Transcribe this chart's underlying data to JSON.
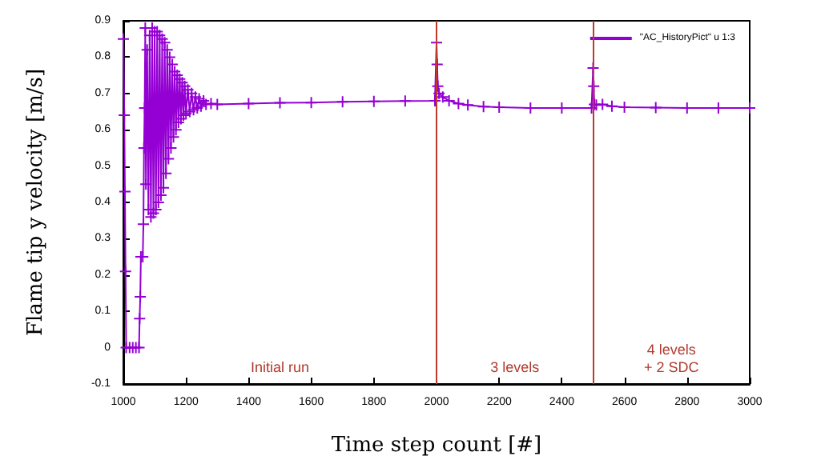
{
  "chart_data": {
    "type": "line",
    "xlabel": "Time step count [#]",
    "ylabel": "Flame tip y velocity [m/s]",
    "xlim": [
      1000,
      3000
    ],
    "xticks": [
      1000,
      1200,
      1400,
      1600,
      1800,
      2000,
      2200,
      2400,
      2600,
      2800,
      3000
    ],
    "ylim": [
      -0.1,
      0.9
    ],
    "yticks": [
      -0.1,
      0,
      0.1,
      0.2,
      0.3,
      0.4,
      0.5,
      0.6,
      0.7,
      0.8,
      0.9
    ],
    "grid": false,
    "legend": "top right",
    "marker": "cross",
    "line_style": "solid",
    "series": [
      {
        "name": "\"AC_HistoryPict\" u 1:3",
        "color": "#9400d3",
        "x": [
          1000,
          1003,
          1005,
          1007,
          1009,
          1020,
          1030,
          1040,
          1050,
          1052,
          1054,
          1056,
          1062,
          1064,
          1066,
          1068,
          1070,
          1072,
          1076,
          1080,
          1084,
          1088,
          1092,
          1096,
          1100,
          1104,
          1108,
          1112,
          1116,
          1120,
          1124,
          1128,
          1132,
          1136,
          1140,
          1144,
          1148,
          1152,
          1156,
          1160,
          1164,
          1168,
          1172,
          1176,
          1180,
          1184,
          1188,
          1192,
          1196,
          1200,
          1206,
          1212,
          1218,
          1224,
          1230,
          1236,
          1242,
          1248,
          1256,
          1264,
          1280,
          1300,
          1400,
          1500,
          1600,
          1700,
          1800,
          1900,
          1995,
          2000,
          2002,
          2004,
          2008,
          2020,
          2040,
          2070,
          2100,
          2150,
          2200,
          2300,
          2400,
          2495,
          2500,
          2502,
          2504,
          2510,
          2530,
          2560,
          2600,
          2700,
          2800,
          2900,
          3000
        ],
        "values": [
          0.85,
          0.64,
          0.43,
          0.21,
          0.0,
          0.0,
          0.0,
          0.0,
          0.0,
          0.08,
          0.14,
          0.25,
          0.25,
          0.34,
          0.55,
          0.66,
          0.88,
          0.45,
          0.82,
          0.38,
          0.86,
          0.36,
          0.88,
          0.37,
          0.87,
          0.38,
          0.87,
          0.4,
          0.86,
          0.42,
          0.85,
          0.44,
          0.84,
          0.48,
          0.82,
          0.52,
          0.8,
          0.55,
          0.78,
          0.58,
          0.76,
          0.6,
          0.75,
          0.62,
          0.74,
          0.63,
          0.73,
          0.64,
          0.72,
          0.645,
          0.71,
          0.65,
          0.7,
          0.655,
          0.69,
          0.66,
          0.685,
          0.665,
          0.68,
          0.67,
          0.672,
          0.67,
          0.672,
          0.674,
          0.675,
          0.677,
          0.678,
          0.679,
          0.68,
          0.84,
          0.78,
          0.72,
          0.7,
          0.69,
          0.68,
          0.672,
          0.668,
          0.664,
          0.662,
          0.66,
          0.66,
          0.66,
          0.77,
          0.72,
          0.67,
          0.668,
          0.67,
          0.665,
          0.662,
          0.661,
          0.66,
          0.66,
          0.66
        ]
      }
    ],
    "ref_lines": [
      {
        "axis": "x",
        "value": 2000,
        "color": "#c0392b"
      },
      {
        "axis": "x",
        "value": 2500,
        "color": "#c0392b"
      }
    ],
    "annotations": [
      "Initial run",
      "3 levels",
      "4 levels\n+ 2 SDC"
    ]
  }
}
